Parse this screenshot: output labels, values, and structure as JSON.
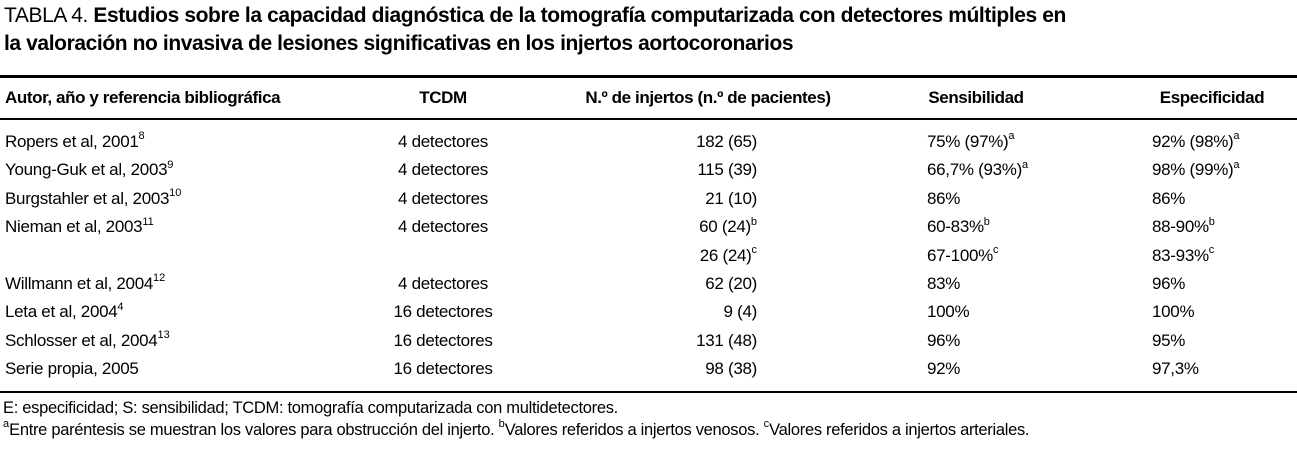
{
  "table": {
    "label": "TABLA 4.",
    "title_line1": "Estudios sobre la capacidad diagnóstica de la tomografía computarizada con detectores múltiples en",
    "title_line2": "la valoración no invasiva de lesiones significativas en los injertos aortocoronarios",
    "columns": [
      "Autor, año y referencia bibliográfica",
      "TCDM",
      "N.º de injertos (n.º de pacientes)",
      "Sensibilidad",
      "Especificidad"
    ],
    "rows": [
      {
        "autor": "Ropers et al, 2001",
        "autor_sup": "8",
        "tcdm": "4 detectores",
        "injertos": "182 (65)",
        "injertos_sup": "",
        "sensibilidad": "75% (97%)",
        "sensibilidad_sup": "a",
        "especificidad": "92% (98%)",
        "especificidad_sup": "a"
      },
      {
        "autor": "Young-Guk et al, 2003",
        "autor_sup": "9",
        "tcdm": "4 detectores",
        "injertos": "115 (39)",
        "injertos_sup": "",
        "sensibilidad": "66,7% (93%)",
        "sensibilidad_sup": "a",
        "especificidad": "98% (99%)",
        "especificidad_sup": "a"
      },
      {
        "autor": "Burgstahler et al, 2003",
        "autor_sup": "10",
        "tcdm": "4 detectores",
        "injertos": "21 (10)",
        "injertos_sup": "",
        "sensibilidad": "86%",
        "sensibilidad_sup": "",
        "especificidad": "86%",
        "especificidad_sup": ""
      },
      {
        "autor": "Nieman et al, 2003",
        "autor_sup": "11",
        "tcdm": "4 detectores",
        "injertos": "60 (24)",
        "injertos_sup": "b",
        "sensibilidad": "60-83%",
        "sensibilidad_sup": "b",
        "especificidad": "88-90%",
        "especificidad_sup": "b"
      },
      {
        "autor": "",
        "autor_sup": "",
        "tcdm": "",
        "injertos": "26 (24)",
        "injertos_sup": "c",
        "sensibilidad": "67-100%",
        "sensibilidad_sup": "c",
        "especificidad": "83-93%",
        "especificidad_sup": "c"
      },
      {
        "autor": "Willmann et al, 2004",
        "autor_sup": "12",
        "tcdm": "4 detectores",
        "injertos": "62 (20)",
        "injertos_sup": "",
        "sensibilidad": "83%",
        "sensibilidad_sup": "",
        "especificidad": "96%",
        "especificidad_sup": ""
      },
      {
        "autor": "Leta et al, 2004",
        "autor_sup": "4",
        "tcdm": "16 detectores",
        "injertos": "9 (4)",
        "injertos_sup": "",
        "sensibilidad": "100%",
        "sensibilidad_sup": "",
        "especificidad": "100%",
        "especificidad_sup": ""
      },
      {
        "autor": "Schlosser et al, 2004",
        "autor_sup": "13",
        "tcdm": "16 detectores",
        "injertos": "131 (48)",
        "injertos_sup": "",
        "sensibilidad": "96%",
        "sensibilidad_sup": "",
        "especificidad": "95%",
        "especificidad_sup": ""
      },
      {
        "autor": "Serie propia, 2005",
        "autor_sup": "",
        "tcdm": "16 detectores",
        "injertos": "98 (38)",
        "injertos_sup": "",
        "sensibilidad": "92%",
        "sensibilidad_sup": "",
        "especificidad": "97,3%",
        "especificidad_sup": ""
      }
    ],
    "abbreviations": "E: especificidad; S: sensibilidad; TCDM: tomografía computarizada con multidetectores.",
    "footnotes": [
      {
        "sup": "a",
        "text": "Entre paréntesis se muestran los valores para obstrucción del injerto. "
      },
      {
        "sup": "b",
        "text": "Valores referidos a injertos venosos. "
      },
      {
        "sup": "c",
        "text": "Valores referidos a injertos arteriales."
      }
    ]
  },
  "colors": {
    "text": "#000000",
    "background": "#ffffff",
    "rule": "#000000"
  }
}
